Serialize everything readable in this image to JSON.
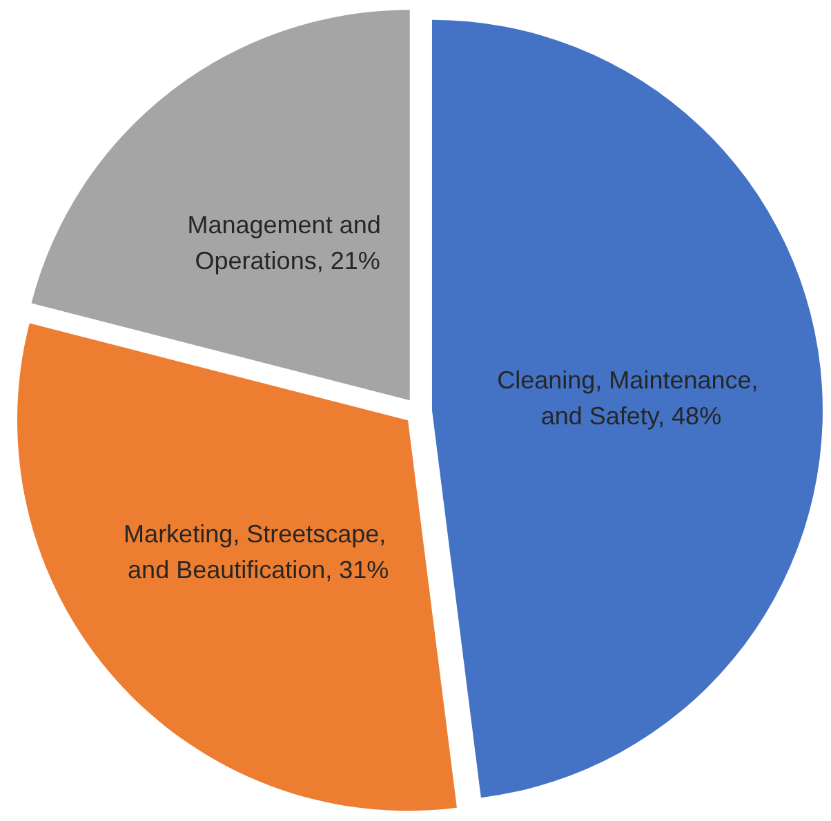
{
  "chart_data": {
    "type": "pie",
    "categories": [
      "Cleaning, Maintenance, and Safety",
      "Marketing, Streetscape, and Beautification",
      "Management and Operations"
    ],
    "values": [
      48,
      31,
      21
    ],
    "colors": [
      "#4472c4",
      "#ed7d31",
      "#a5a5a5"
    ],
    "value_labels": [
      "48%",
      "31%",
      "21%"
    ],
    "legend": false
  }
}
